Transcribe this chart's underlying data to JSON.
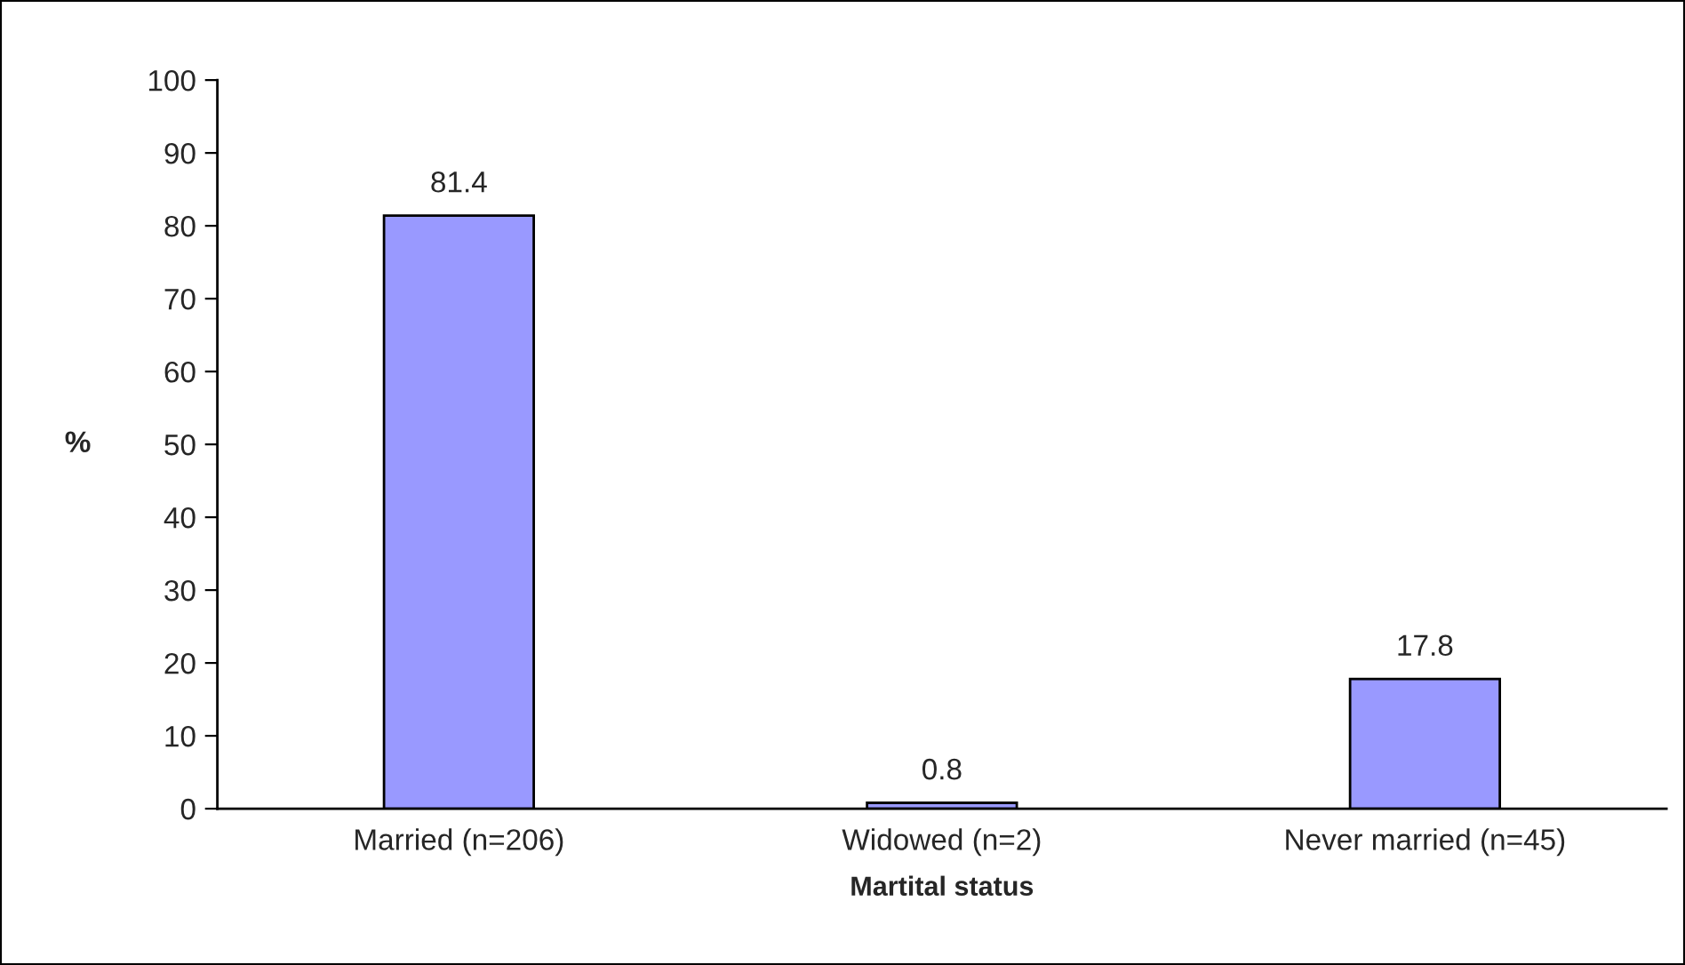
{
  "chart_data": {
    "type": "bar",
    "xlabel": "Martital status",
    "ylabel": "%",
    "categories": [
      "Married (n=206)",
      "Widowed (n=2)",
      "Never married (n=45)"
    ],
    "values": [
      81.4,
      0.8,
      17.8
    ],
    "color": "#9999ff",
    "ylim": [
      0,
      100
    ],
    "yticks": [
      0,
      10,
      20,
      30,
      40,
      50,
      60,
      70,
      80,
      90,
      100
    ],
    "data_labels": true
  }
}
